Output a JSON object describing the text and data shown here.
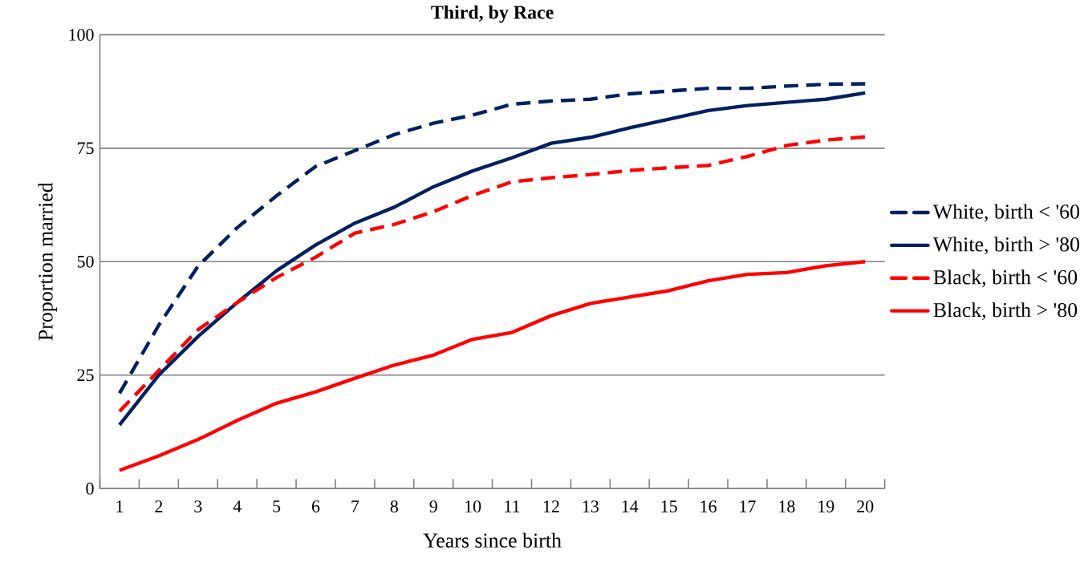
{
  "chart_data": {
    "type": "line",
    "title": "Third, by Race",
    "xlabel": "Years since birth",
    "ylabel": "Proportion married",
    "categories": [
      "1",
      "2",
      "3",
      "4",
      "5",
      "6",
      "7",
      "8",
      "9",
      "10",
      "11",
      "12",
      "13",
      "14",
      "15",
      "16",
      "17",
      "18",
      "19",
      "20"
    ],
    "series": [
      {
        "name": "White, birth < '60",
        "color": "#002060",
        "line_style": "dashed",
        "values": [
          21,
          36,
          49,
          57.5,
          64.5,
          71,
          74.5,
          78,
          80.5,
          82.3,
          84.7,
          85.4,
          85.8,
          87,
          87.6,
          88.2,
          88.2,
          88.7,
          89.1,
          89.2
        ]
      },
      {
        "name": "White, birth > '80",
        "color": "#002060",
        "line_style": "solid",
        "values": [
          14,
          25,
          33.5,
          41,
          48,
          53.7,
          58.5,
          62,
          66.5,
          70,
          72.9,
          76.1,
          77.4,
          79.5,
          81.4,
          83.3,
          84.4,
          85.1,
          85.8,
          87.2
        ]
      },
      {
        "name": "Black, birth < '60",
        "color": "#ff0000",
        "line_style": "dashed",
        "values": [
          17,
          26,
          35,
          41,
          46.5,
          51,
          56.3,
          58.2,
          61,
          64.6,
          67.6,
          68.5,
          69.2,
          70.1,
          70.7,
          71.2,
          73.2,
          75.6,
          76.8,
          77.5
        ]
      },
      {
        "name": "Black, birth > '80",
        "color": "#ff0000",
        "line_style": "solid",
        "values": [
          4,
          7.2,
          10.8,
          15,
          18.8,
          21.3,
          24.3,
          27.2,
          29.4,
          32.9,
          34.4,
          38.1,
          40.8,
          42.2,
          43.6,
          45.8,
          47.2,
          47.6,
          49.1,
          50
        ]
      }
    ],
    "ylim": [
      0,
      100
    ],
    "yticks": [
      0,
      25,
      50,
      75,
      100
    ],
    "grid": "y",
    "legend": "right",
    "marker": "none"
  }
}
